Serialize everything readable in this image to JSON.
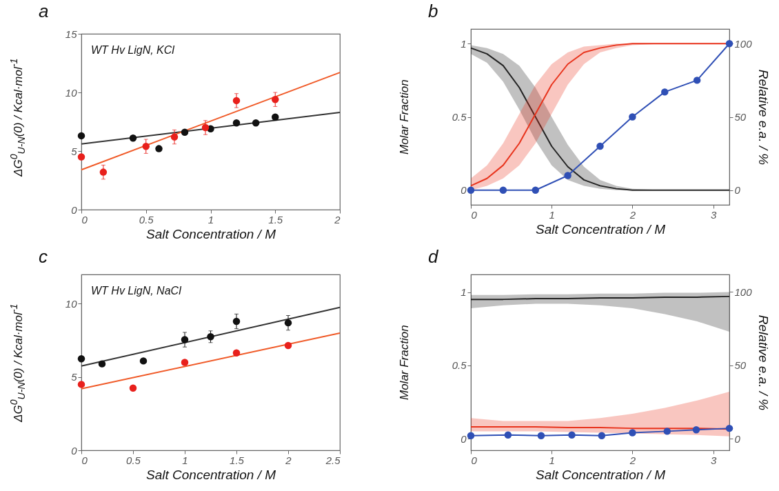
{
  "chart_data": [
    {
      "type": "scatter",
      "title": "a",
      "xlabel": "Salt Concentration / M",
      "ylabel": "ΔG$^{0}$$_{U-N}$(0) / Kcal·mol$^{-1}$",
      "annotations": [
        "WT Hv LigN, KCl"
      ],
      "xlim": [
        0,
        2
      ],
      "xticks": [
        0,
        0.5,
        1,
        1.5,
        2
      ],
      "ylim": [
        0,
        15
      ],
      "yticks": [
        0,
        5,
        10,
        15
      ],
      "series": [
        {
          "type": "line",
          "color": "#333333",
          "x": [
            0,
            2
          ],
          "values": [
            5.6,
            8.3
          ]
        },
        {
          "type": "line",
          "color": "#f05a28",
          "x": [
            0,
            2
          ],
          "values": [
            3.4,
            11.7
          ]
        },
        {
          "marker": "circle",
          "color": "#111111",
          "x": [
            0,
            0.4,
            0.6,
            0.8,
            1,
            1.2,
            1.35,
            1.5
          ],
          "values": [
            6.3,
            6.1,
            5.2,
            6.6,
            6.9,
            7.4,
            7.4,
            7.9
          ]
        },
        {
          "marker": "circle",
          "color": "#e8201c",
          "x": [
            0,
            0.17,
            0.5,
            0.72,
            0.96,
            1.2,
            1.5
          ],
          "values": [
            4.5,
            3.2,
            5.4,
            6.2,
            7.0,
            9.3,
            9.4
          ],
          "errors": [
            null,
            0.6,
            0.6,
            0.6,
            0.6,
            0.6,
            0.6
          ]
        }
      ]
    },
    {
      "type": "line",
      "title": "b",
      "xlabel": "Salt Concentration / M",
      "ylabel": "Molar Fraction",
      "y2label": "Relative e.a. / %",
      "xlim": [
        0,
        3.2
      ],
      "xticks": [
        0,
        1,
        2,
        3
      ],
      "ylim": [
        -0.1,
        1.1
      ],
      "yticks": [
        0,
        0.5,
        1
      ],
      "y2lim": [
        -10,
        110
      ],
      "y2ticks": [
        0,
        50,
        100
      ],
      "series": [
        {
          "color": "#222222",
          "x": [
            0,
            0.2,
            0.4,
            0.6,
            0.8,
            1,
            1.2,
            1.4,
            1.6,
            1.8,
            2,
            2.4,
            3.2
          ],
          "values": [
            0.97,
            0.93,
            0.85,
            0.7,
            0.5,
            0.3,
            0.16,
            0.07,
            0.03,
            0.01,
            0,
            0,
            0
          ],
          "lower": [
            0.93,
            0.87,
            0.74,
            0.55,
            0.34,
            0.17,
            0.07,
            0.03,
            0.01,
            0,
            0,
            0,
            0
          ],
          "upper": [
            0.99,
            0.97,
            0.93,
            0.85,
            0.7,
            0.5,
            0.31,
            0.16,
            0.07,
            0.03,
            0.01,
            0,
            0
          ]
        },
        {
          "color": "#e8331c",
          "x": [
            0,
            0.2,
            0.4,
            0.6,
            0.8,
            1,
            1.2,
            1.4,
            1.6,
            1.8,
            2,
            2.4,
            3.2
          ],
          "values": [
            0.03,
            0.08,
            0.17,
            0.32,
            0.52,
            0.72,
            0.86,
            0.94,
            0.97,
            0.99,
            1,
            1,
            1
          ],
          "lower": [
            0,
            0.03,
            0.08,
            0.17,
            0.32,
            0.52,
            0.72,
            0.86,
            0.94,
            0.97,
            0.99,
            1,
            1
          ],
          "upper": [
            0.08,
            0.17,
            0.32,
            0.52,
            0.72,
            0.86,
            0.94,
            0.98,
            0.99,
            1,
            1,
            1,
            1
          ]
        },
        {
          "color": "#2f4fb5",
          "axis": "y2",
          "marker": "circle",
          "x": [
            0,
            0.4,
            0.8,
            1.2,
            1.6,
            2,
            2.4,
            2.8,
            3.2
          ],
          "values": [
            0,
            0,
            0,
            10,
            30,
            50,
            67,
            75,
            100
          ]
        }
      ]
    },
    {
      "type": "scatter",
      "title": "c",
      "xlabel": "Salt Concentration / M",
      "ylabel": "ΔG$^{0}$$_{U-N}$(0) / Kcal·mol$^{-1}$",
      "annotations": [
        "WT Hv LigN, NaCl"
      ],
      "xlim": [
        0,
        2.5
      ],
      "xticks": [
        0,
        0.5,
        1,
        1.5,
        2,
        2.5
      ],
      "ylim": [
        0,
        12
      ],
      "yticks": [
        0,
        5,
        10
      ],
      "series": [
        {
          "type": "line",
          "color": "#333333",
          "x": [
            0,
            2.5
          ],
          "values": [
            5.75,
            9.75
          ]
        },
        {
          "type": "line",
          "color": "#f05a28",
          "x": [
            0,
            2.5
          ],
          "values": [
            4.2,
            8.0
          ]
        },
        {
          "marker": "circle",
          "color": "#111111",
          "x": [
            0,
            0.2,
            0.6,
            1,
            1.25,
            1.5,
            2
          ],
          "values": [
            6.25,
            5.9,
            6.1,
            7.55,
            7.75,
            8.8,
            8.7
          ],
          "errors": [
            null,
            null,
            null,
            0.5,
            0.4,
            0.5,
            0.5
          ]
        },
        {
          "marker": "circle",
          "color": "#e8201c",
          "x": [
            0,
            0.5,
            1,
            1.5,
            2
          ],
          "values": [
            4.5,
            4.25,
            6.0,
            6.65,
            7.15
          ]
        }
      ]
    },
    {
      "type": "line",
      "title": "d",
      "xlabel": "Salt Concentration / M",
      "ylabel": "Molar Fraction",
      "y2label": "Relative e.a. / %",
      "xlim": [
        0,
        3.2
      ],
      "xticks": [
        0,
        1,
        2,
        3
      ],
      "ylim": [
        -0.08,
        1.12
      ],
      "yticks": [
        0,
        0.5,
        1
      ],
      "y2lim": [
        -8,
        112
      ],
      "y2ticks": [
        0,
        50,
        100
      ],
      "series": [
        {
          "color": "#222222",
          "x": [
            0,
            0.4,
            0.8,
            1.2,
            1.6,
            2,
            2.4,
            2.8,
            3.2
          ],
          "values": [
            0.95,
            0.95,
            0.955,
            0.955,
            0.96,
            0.96,
            0.965,
            0.965,
            0.97
          ],
          "lower": [
            0.89,
            0.91,
            0.92,
            0.92,
            0.91,
            0.89,
            0.85,
            0.8,
            0.73
          ],
          "upper": [
            0.98,
            0.98,
            0.985,
            0.985,
            0.99,
            0.99,
            0.995,
            0.995,
            1
          ]
        },
        {
          "color": "#e8331c",
          "x": [
            0,
            0.4,
            0.8,
            1.2,
            1.6,
            2,
            2.4,
            2.8,
            3.2
          ],
          "values": [
            0.08,
            0.08,
            0.08,
            0.075,
            0.075,
            0.07,
            0.07,
            0.07,
            0.065
          ],
          "lower": [
            0.05,
            0.05,
            0.05,
            0.045,
            0.04,
            0.035,
            0.03,
            0.025,
            0.015
          ],
          "upper": [
            0.14,
            0.12,
            0.12,
            0.12,
            0.14,
            0.17,
            0.21,
            0.26,
            0.32
          ]
        },
        {
          "color": "#2f4fb5",
          "axis": "y2",
          "marker": "circle",
          "x": [
            0,
            0.46,
            0.87,
            1.25,
            1.62,
            2,
            2.43,
            2.79,
            3.2
          ],
          "values": [
            2,
            2.5,
            2,
            2.5,
            2,
            4,
            5,
            6,
            7
          ]
        }
      ]
    }
  ]
}
